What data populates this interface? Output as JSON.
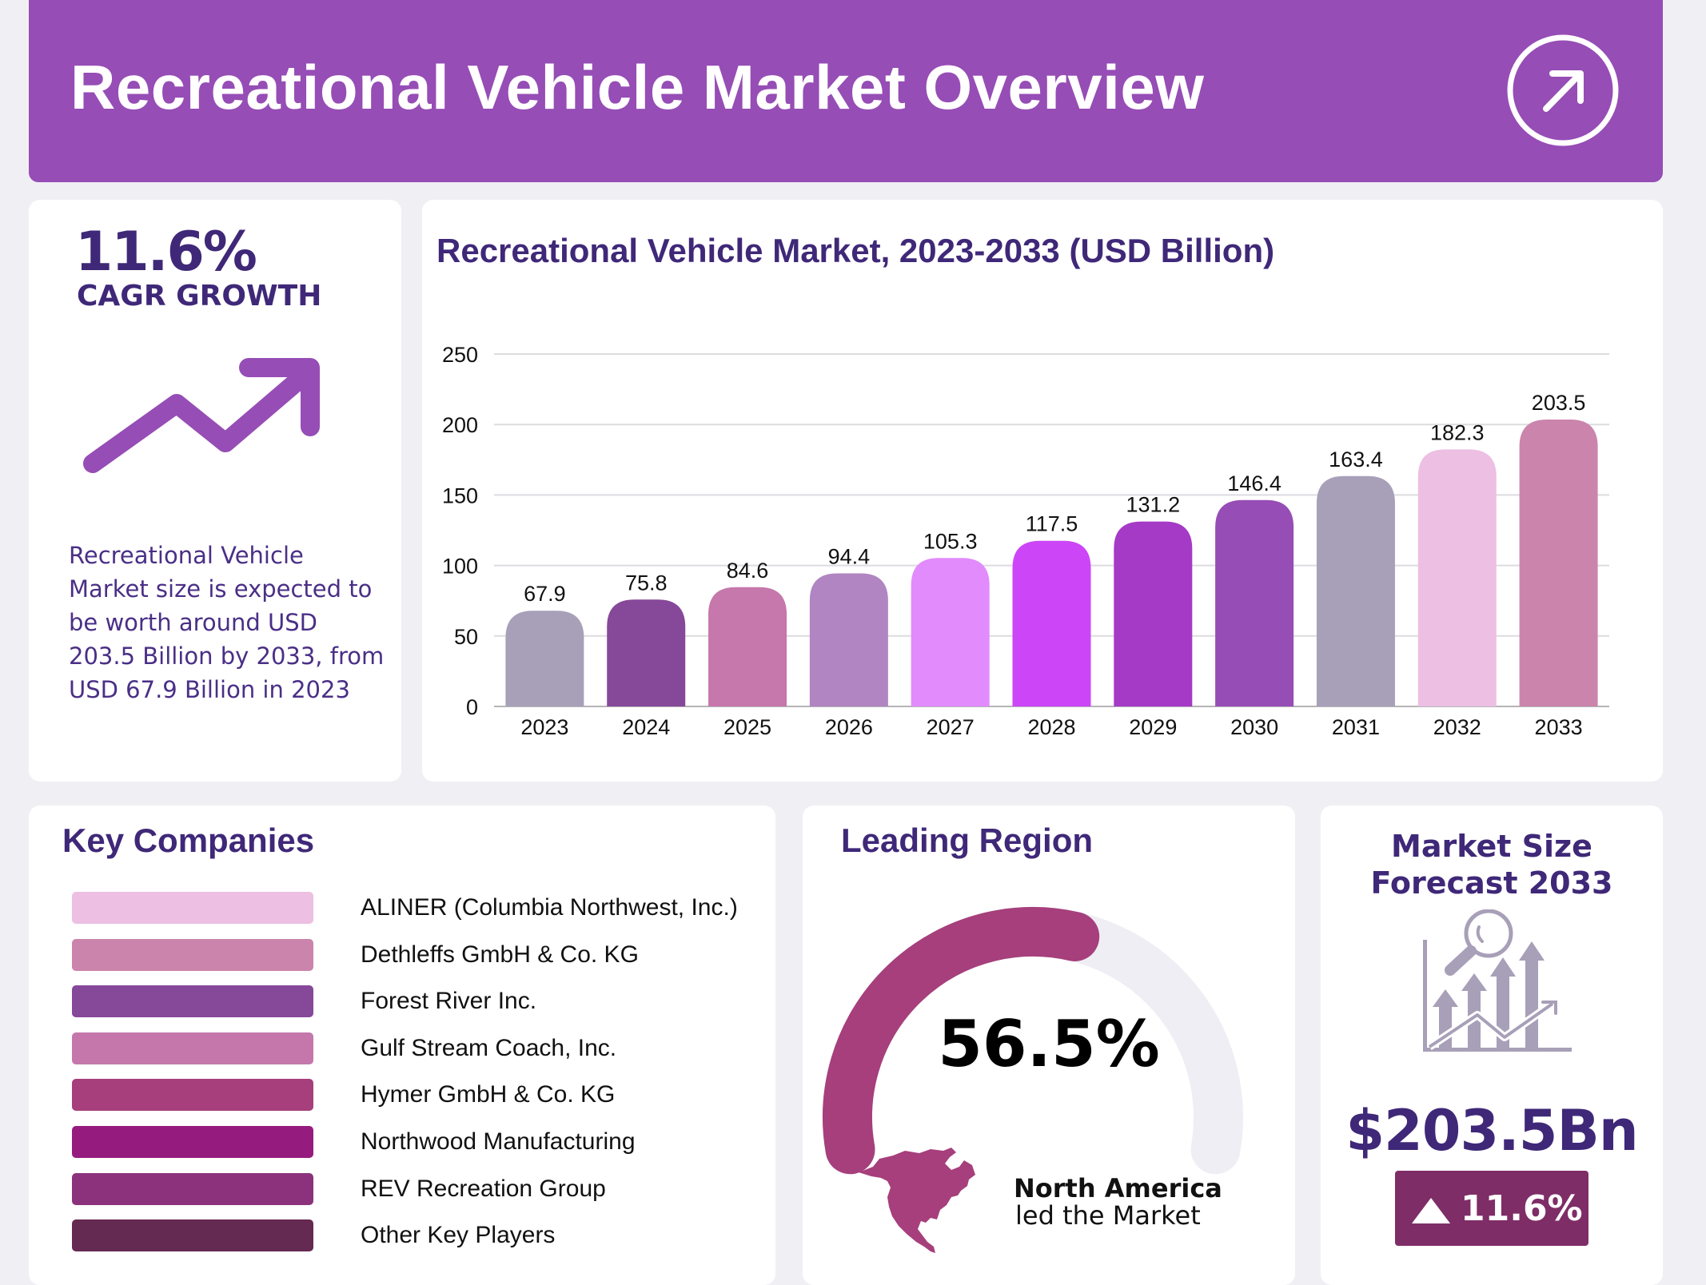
{
  "header": {
    "title": "Recreational Vehicle Market Overview",
    "icon": "arrow-up-right-circle-icon",
    "background_color": "#964db5"
  },
  "cagr_card": {
    "value": "11.6%",
    "label": "CAGR GROWTH",
    "icon": "trending-up-arrow-icon",
    "description": "Recreational Vehicle Market size is expected to be worth around USD 203.5 Billion by 2033, from USD 67.9 Billion in 2023"
  },
  "chart_data": {
    "type": "bar",
    "title": "Recreational Vehicle Market, 2023-2033 (USD Billion)",
    "xlabel": "",
    "ylabel": "",
    "categories": [
      "2023",
      "2024",
      "2025",
      "2026",
      "2027",
      "2028",
      "2029",
      "2030",
      "2031",
      "2032",
      "2033"
    ],
    "values": [
      67.9,
      75.8,
      84.6,
      94.4,
      105.3,
      117.5,
      131.2,
      146.4,
      163.4,
      182.3,
      203.5
    ],
    "value_labels": [
      "67.9",
      "75.8",
      "84.6",
      "94.4",
      "105.3",
      "117.5",
      "131.2",
      "146.4",
      "163.4",
      "182.3",
      "203.5"
    ],
    "bar_colors": [
      "#a89fb8",
      "#864899",
      "#c677ab",
      "#b085c1",
      "#e18bfc",
      "#cc46f7",
      "#a53ac6",
      "#964db5",
      "#a89fb8",
      "#ecbfe3",
      "#cb84ac"
    ],
    "ylim": [
      0,
      250
    ],
    "yticks": [
      0,
      50,
      100,
      150,
      200,
      250
    ],
    "ytick_labels": [
      "0",
      "50",
      "100",
      "150",
      "200",
      "250"
    ],
    "grid": true,
    "legend": "none"
  },
  "companies": {
    "title": "Key Companies",
    "items": [
      {
        "name": "ALINER (Columbia Northwest, Inc.)",
        "color": "#ecbfe3"
      },
      {
        "name": "Dethleffs GmbH & Co. KG",
        "color": "#cb84ab"
      },
      {
        "name": "Forest River Inc.",
        "color": "#864899"
      },
      {
        "name": "Gulf Stream Coach, Inc.",
        "color": "#c577ab"
      },
      {
        "name": "Hymer GmbH & Co. KG",
        "color": "#a63f7c"
      },
      {
        "name": "Northwood Manufacturing",
        "color": "#961b7e"
      },
      {
        "name": "REV Recreation Group",
        "color": "#8c327c"
      },
      {
        "name": "Other Key Players",
        "color": "#652a52"
      }
    ]
  },
  "leading_region": {
    "title": "Leading Region",
    "share_percent": 56.5,
    "share_label": "56.5%",
    "gauge_color": "#a63f7c",
    "gauge_track_color": "#efeef4",
    "map_icon": "north-america-map-icon",
    "region_name": "North America",
    "region_sub": "led the Market"
  },
  "market_size": {
    "title_line1": "Market Size",
    "title_line2": "Forecast 2033",
    "icon": "chart-analysis-magnifier-icon",
    "value": "$203.5Bn",
    "badge_icon": "triangle-up-icon",
    "badge_value": "11.6%",
    "badge_color": "#7e2d67"
  }
}
